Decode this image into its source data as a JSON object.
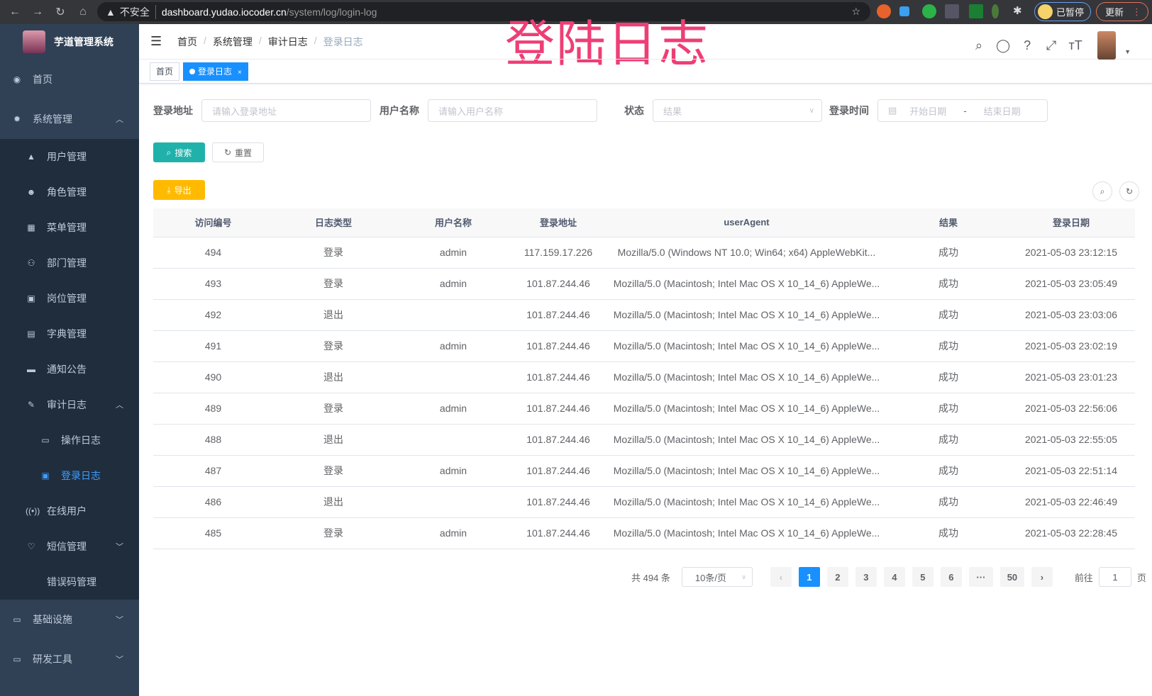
{
  "browser": {
    "insecure": "不安全",
    "url_host": "dashboard.yudao.iocoder.cn",
    "url_path": "/system/log/login-log",
    "paused": "已暂停",
    "update": "更新"
  },
  "overlay_title": "登陆日志",
  "sidebar": {
    "title": "芋道管理系统",
    "items": [
      {
        "label": "首页",
        "icon": "dashboard-icon"
      },
      {
        "label": "系统管理",
        "icon": "gear-icon",
        "arrow": "^"
      },
      {
        "label": "用户管理",
        "icon": "user-icon"
      },
      {
        "label": "角色管理",
        "icon": "peoples-icon"
      },
      {
        "label": "菜单管理",
        "icon": "tree-table-icon"
      },
      {
        "label": "部门管理",
        "icon": "tree-icon"
      },
      {
        "label": "岗位管理",
        "icon": "post-icon"
      },
      {
        "label": "字典管理",
        "icon": "dict-icon"
      },
      {
        "label": "通知公告",
        "icon": "message-icon"
      },
      {
        "label": "审计日志",
        "icon": "log-icon",
        "arrow": "^"
      },
      {
        "label": "操作日志",
        "icon": "form-icon"
      },
      {
        "label": "登录日志",
        "icon": "logininfor-icon"
      },
      {
        "label": "在线用户",
        "icon": "online-icon"
      },
      {
        "label": "短信管理",
        "icon": "validcode-icon",
        "arrow": "v"
      },
      {
        "label": "错误码管理",
        "icon": "code-icon"
      },
      {
        "label": "基础设施",
        "icon": "monitor-icon",
        "arrow": "v"
      },
      {
        "label": "研发工具",
        "icon": "tool-icon",
        "arrow": "v"
      }
    ]
  },
  "breadcrumb": [
    "首页",
    "系统管理",
    "审计日志",
    "登录日志"
  ],
  "tags": [
    {
      "label": "首页"
    },
    {
      "label": "登录日志",
      "close": "×"
    }
  ],
  "filters": {
    "address_label": "登录地址",
    "address_placeholder": "请输入登录地址",
    "user_label": "用户名称",
    "user_placeholder": "请输入用户名称",
    "status_label": "状态",
    "status_placeholder": "结果",
    "time_label": "登录时间",
    "start_placeholder": "开始日期",
    "sep": "-",
    "end_placeholder": "结束日期",
    "search": "搜索",
    "reset": "重置",
    "export": "导出"
  },
  "table": {
    "headers": [
      "访问编号",
      "日志类型",
      "用户名称",
      "登录地址",
      "userAgent",
      "结果",
      "登录日期"
    ],
    "rows": [
      [
        "494",
        "登录",
        "admin",
        "117.159.17.226",
        "Mozilla/5.0 (Windows NT 10.0; Win64; x64) AppleWebKit...",
        "成功",
        "2021-05-03 23:12:15"
      ],
      [
        "493",
        "登录",
        "admin",
        "101.87.244.46",
        "Mozilla/5.0 (Macintosh; Intel Mac OS X 10_14_6) AppleWe...",
        "成功",
        "2021-05-03 23:05:49"
      ],
      [
        "492",
        "退出",
        "",
        "101.87.244.46",
        "Mozilla/5.0 (Macintosh; Intel Mac OS X 10_14_6) AppleWe...",
        "成功",
        "2021-05-03 23:03:06"
      ],
      [
        "491",
        "登录",
        "admin",
        "101.87.244.46",
        "Mozilla/5.0 (Macintosh; Intel Mac OS X 10_14_6) AppleWe...",
        "成功",
        "2021-05-03 23:02:19"
      ],
      [
        "490",
        "退出",
        "",
        "101.87.244.46",
        "Mozilla/5.0 (Macintosh; Intel Mac OS X 10_14_6) AppleWe...",
        "成功",
        "2021-05-03 23:01:23"
      ],
      [
        "489",
        "登录",
        "admin",
        "101.87.244.46",
        "Mozilla/5.0 (Macintosh; Intel Mac OS X 10_14_6) AppleWe...",
        "成功",
        "2021-05-03 22:56:06"
      ],
      [
        "488",
        "退出",
        "",
        "101.87.244.46",
        "Mozilla/5.0 (Macintosh; Intel Mac OS X 10_14_6) AppleWe...",
        "成功",
        "2021-05-03 22:55:05"
      ],
      [
        "487",
        "登录",
        "admin",
        "101.87.244.46",
        "Mozilla/5.0 (Macintosh; Intel Mac OS X 10_14_6) AppleWe...",
        "成功",
        "2021-05-03 22:51:14"
      ],
      [
        "486",
        "退出",
        "",
        "101.87.244.46",
        "Mozilla/5.0 (Macintosh; Intel Mac OS X 10_14_6) AppleWe...",
        "成功",
        "2021-05-03 22:46:49"
      ],
      [
        "485",
        "登录",
        "admin",
        "101.87.244.46",
        "Mozilla/5.0 (Macintosh; Intel Mac OS X 10_14_6) AppleWe...",
        "成功",
        "2021-05-03 22:28:45"
      ]
    ]
  },
  "pagination": {
    "total": "共 494 条",
    "page_size": "10条/页",
    "pages": [
      "1",
      "2",
      "3",
      "4",
      "5",
      "6",
      "···",
      "50"
    ],
    "current": "1",
    "goto_label": "前往",
    "goto_value": "1",
    "goto_suffix": "页"
  },
  "colors": {
    "sidebar": "#304156",
    "primary": "#1890ff",
    "search_btn": "#13ce66",
    "export_btn": "#ffba00",
    "overlay": "#ee3e75"
  }
}
